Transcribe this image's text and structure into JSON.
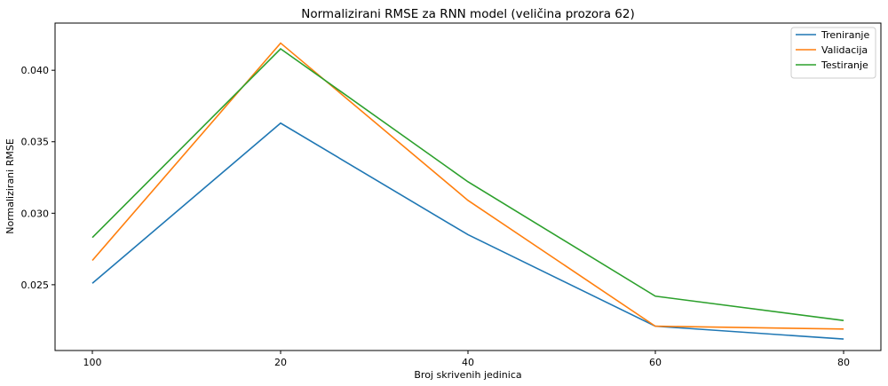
{
  "chart_data": {
    "type": "line",
    "title": "Normalizirani RMSE za RNN model (veličina prozora 62)",
    "xlabel": "Broj skrivenih jedinica",
    "ylabel": "Normalizirani RMSE",
    "categories": [
      "100",
      "20",
      "40",
      "60",
      "80"
    ],
    "ylim": [
      0.0204,
      0.0433
    ],
    "yticks": [
      "0.025",
      "0.030",
      "0.035",
      "0.040"
    ],
    "grid": false,
    "legend_position": "top-right",
    "series": [
      {
        "name": "Treniranje",
        "color": "#1f77b4",
        "values": [
          0.0251,
          0.0363,
          0.0285,
          0.0221,
          0.0212
        ]
      },
      {
        "name": "Validacija",
        "color": "#ff7f0e",
        "values": [
          0.0267,
          0.0419,
          0.0309,
          0.0221,
          0.0219
        ]
      },
      {
        "name": "Testiranje",
        "color": "#2ca02c",
        "values": [
          0.0283,
          0.0415,
          0.0322,
          0.0242,
          0.0225
        ]
      }
    ]
  }
}
